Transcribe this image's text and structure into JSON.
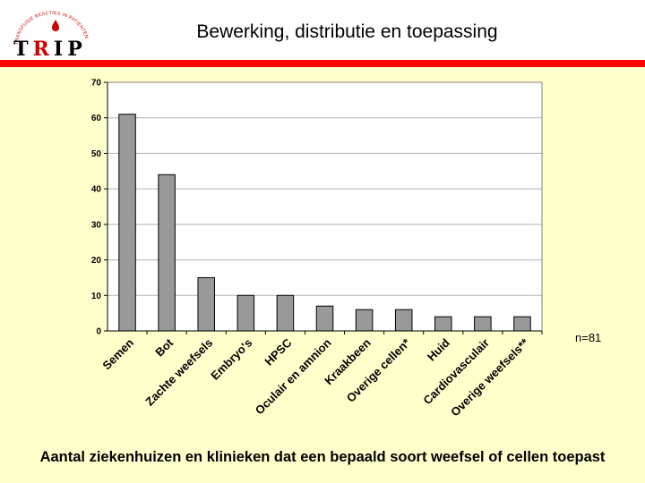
{
  "slide": {
    "title": "Bewerking, distributie en toepassing",
    "caption": "Aantal ziekenhuizen en klinieken dat een bepaald soort weefsel of cellen toepast",
    "sample_size": "n=81",
    "accent_color": "#ff0000",
    "panel_color": "#ffffcc"
  },
  "logo": {
    "letters": [
      "T",
      "R",
      "I",
      "P"
    ],
    "arc_text": "TRANSFUSIE REACTIES IN PATIENTEN",
    "letter_color": "#000000",
    "accent_letter_color": "#cc0000"
  },
  "chart_data": {
    "type": "bar",
    "categories": [
      "Semen",
      "Bot",
      "Zachte weefsels",
      "Embryo's",
      "HPSC",
      "Oculair en amnion",
      "Kraakbeen",
      "Overige cellen*",
      "Huid",
      "Cardiovasculair",
      "Overige weefsels**"
    ],
    "values": [
      61,
      44,
      15,
      10,
      10,
      7,
      6,
      6,
      4,
      4,
      4
    ],
    "ylim": [
      0,
      70
    ],
    "yticks": [
      0,
      10,
      20,
      30,
      40,
      50,
      60,
      70
    ],
    "grid": true,
    "bar_color": "#999999",
    "plot_bg": "#ffffff",
    "grid_color": "#b0b0b0"
  }
}
